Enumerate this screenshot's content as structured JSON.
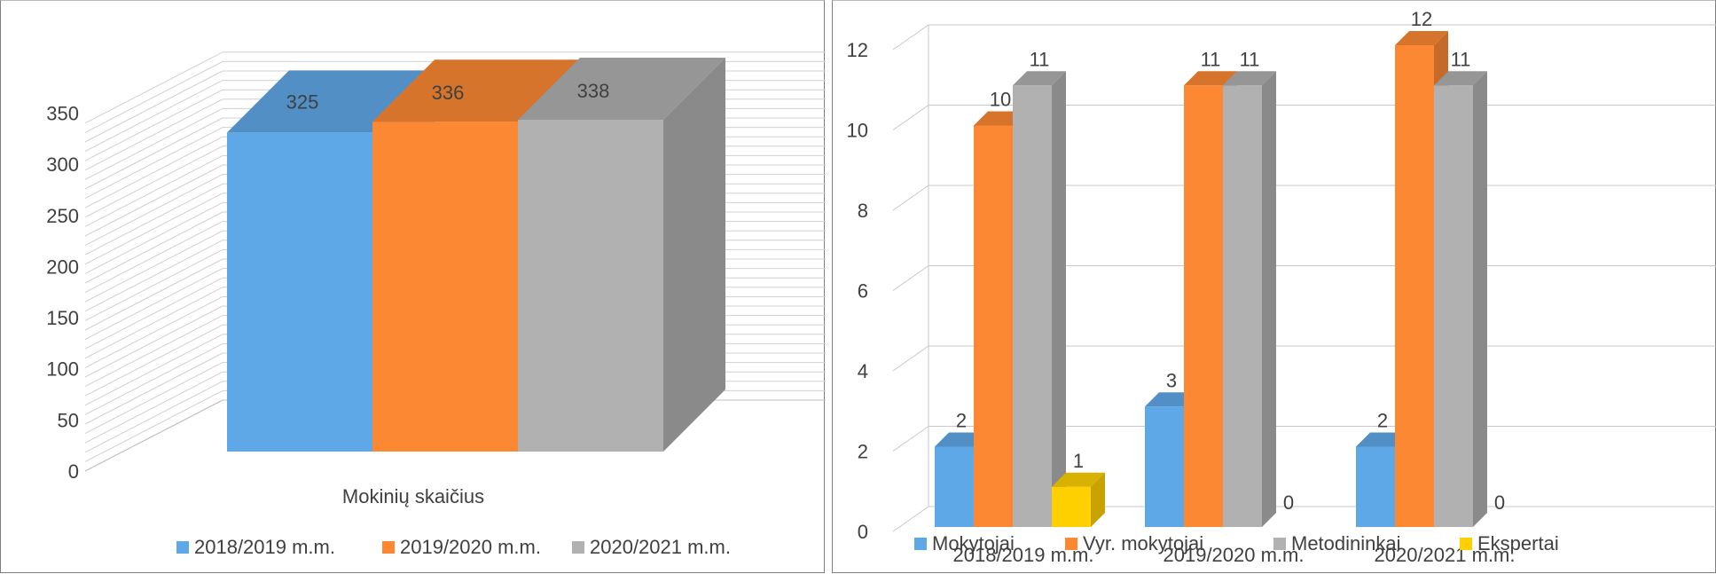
{
  "chart_data": [
    {
      "type": "bar",
      "title": "",
      "categories": [
        "Mokinių skaičius"
      ],
      "series": [
        {
          "name": "2018/2019 m.m.",
          "values": [
            325
          ],
          "color": "#5fa8e8"
        },
        {
          "name": "2019/2020 m.m.",
          "values": [
            336
          ],
          "color": "#fd8833"
        },
        {
          "name": "2020/2021 m.m.",
          "values": [
            338
          ],
          "color": "#b1b1b1"
        }
      ],
      "y_ticks": [
        "0",
        "50",
        "100",
        "150",
        "200",
        "250",
        "300",
        "350"
      ],
      "ylim": [
        0,
        350
      ],
      "grid": true,
      "legend": "bottom"
    },
    {
      "type": "bar",
      "title": "",
      "categories": [
        "2018/2019 m.m.",
        "2019/2020 m.m.",
        "2020/2021 m.m."
      ],
      "series": [
        {
          "name": "Mokytojai",
          "values": [
            2,
            3,
            2
          ],
          "color": "#5fa8e8"
        },
        {
          "name": "Vyr. mokytojai",
          "values": [
            10,
            11,
            12
          ],
          "color": "#fd8833"
        },
        {
          "name": "Metodininkai",
          "values": [
            11,
            11,
            11
          ],
          "color": "#b1b1b1"
        },
        {
          "name": "Ekspertai",
          "values": [
            1,
            0,
            0
          ],
          "color": "#ffd000"
        }
      ],
      "y_ticks": [
        "0",
        "2",
        "4",
        "6",
        "8",
        "10",
        "12"
      ],
      "ylim": [
        0,
        12
      ],
      "grid": true,
      "legend": "bottom"
    }
  ]
}
